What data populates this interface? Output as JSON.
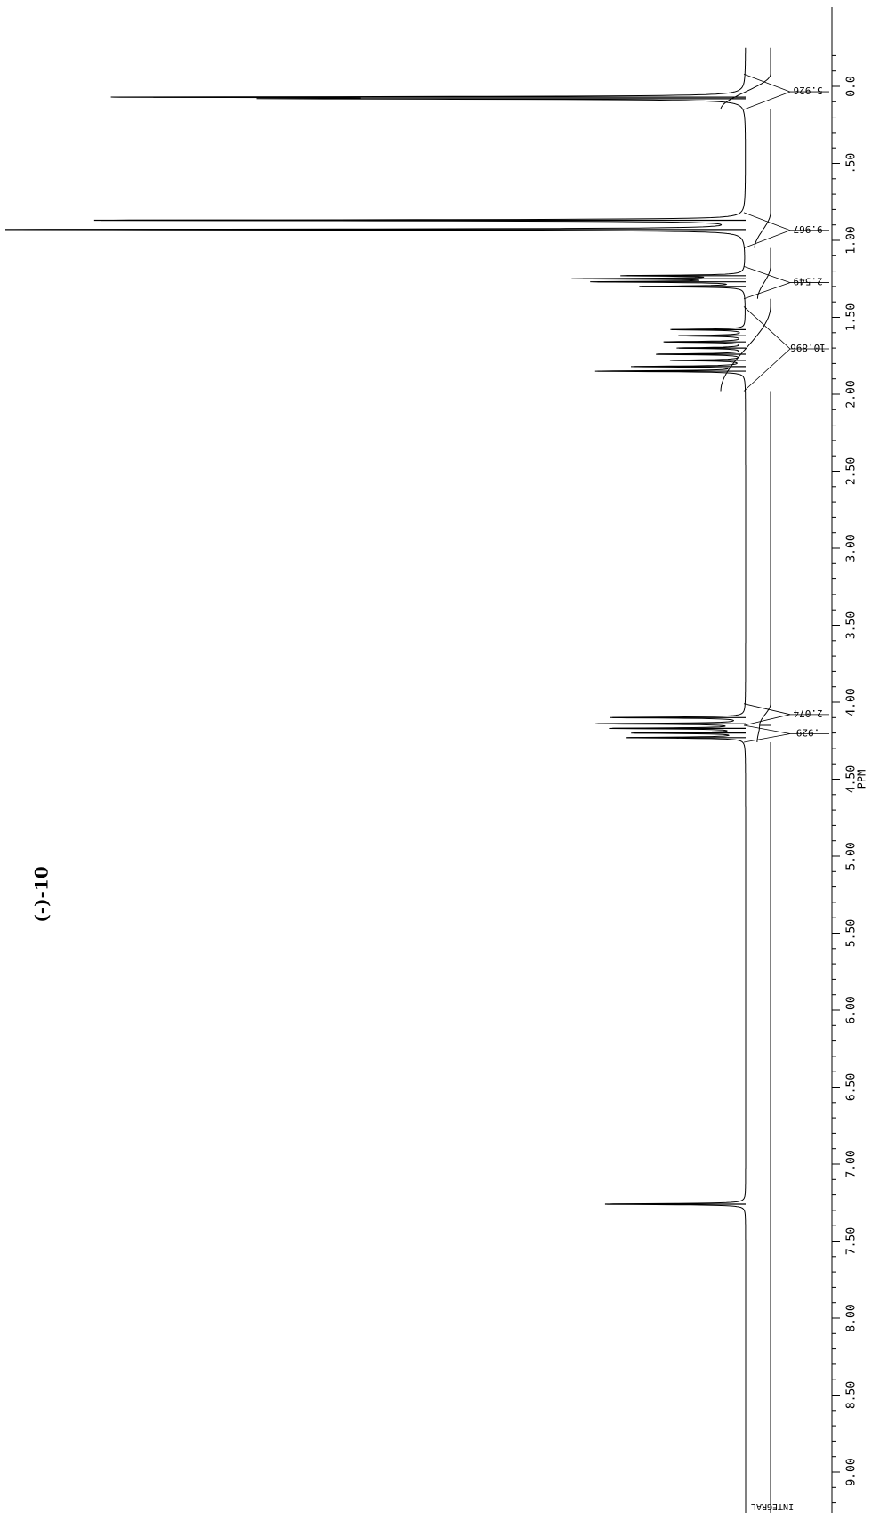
{
  "chart_data": {
    "type": "line",
    "title": "(-)-10",
    "xlabel": "PPM",
    "xlim": [
      -0.25,
      9.55
    ],
    "x_reversed": true,
    "orientation": "rotated-90-clockwise",
    "grid": false,
    "tick_labels": [
      "0.0",
      ".50",
      "1.00",
      "1.50",
      "2.00",
      "2.50",
      "3.00",
      "3.50",
      "4.00",
      "4.50",
      "5.00",
      "5.50",
      "6.00",
      "6.50",
      "7.00",
      "7.50",
      "8.00",
      "8.50",
      "9.00"
    ],
    "tick_values": [
      0.0,
      0.5,
      1.0,
      1.5,
      2.0,
      2.5,
      3.0,
      3.5,
      4.0,
      4.5,
      5.0,
      5.5,
      6.0,
      6.5,
      7.0,
      7.5,
      8.0,
      8.5,
      9.0
    ],
    "peaks": [
      {
        "ppm": 0.07,
        "height": 0.8
      },
      {
        "ppm": 0.08,
        "height": 0.55
      },
      {
        "ppm": 0.87,
        "height": 0.88
      },
      {
        "ppm": 0.93,
        "height": 1.0
      },
      {
        "ppm": 1.23,
        "height": 0.16
      },
      {
        "ppm": 1.25,
        "height": 0.22
      },
      {
        "ppm": 1.27,
        "height": 0.2
      },
      {
        "ppm": 1.3,
        "height": 0.14
      },
      {
        "ppm": 1.58,
        "height": 0.1
      },
      {
        "ppm": 1.62,
        "height": 0.09
      },
      {
        "ppm": 1.66,
        "height": 0.11
      },
      {
        "ppm": 1.7,
        "height": 0.09
      },
      {
        "ppm": 1.74,
        "height": 0.12
      },
      {
        "ppm": 1.78,
        "height": 0.1
      },
      {
        "ppm": 1.82,
        "height": 0.15
      },
      {
        "ppm": 1.85,
        "height": 0.2
      },
      {
        "ppm": 4.1,
        "height": 0.18
      },
      {
        "ppm": 4.14,
        "height": 0.2
      },
      {
        "ppm": 4.17,
        "height": 0.18
      },
      {
        "ppm": 4.2,
        "height": 0.15
      },
      {
        "ppm": 4.23,
        "height": 0.16
      },
      {
        "ppm": 7.26,
        "height": 0.19
      }
    ],
    "integrals": [
      {
        "label": "5.926",
        "from": -0.08,
        "to": 0.15,
        "start": 0.0,
        "end": 1.0
      },
      {
        "label": "9.967",
        "from": 0.82,
        "to": 1.05,
        "start": 0.0,
        "end": 0.32
      },
      {
        "label": "2.549",
        "from": 1.17,
        "to": 1.38,
        "start": 0.0,
        "end": 0.26
      },
      {
        "label": "10.896",
        "from": 1.43,
        "to": 1.98,
        "start": 0.0,
        "end": 1.0
      },
      {
        "label": "2.074",
        "from": 4.01,
        "to": 4.15,
        "start": 0.0,
        "end": 0.22
      },
      {
        "label": ".929",
        "from": 4.15,
        "to": 4.26,
        "start": 0.22,
        "end": 0.27
      }
    ],
    "integral_trace_label": "INTEGRAL"
  }
}
